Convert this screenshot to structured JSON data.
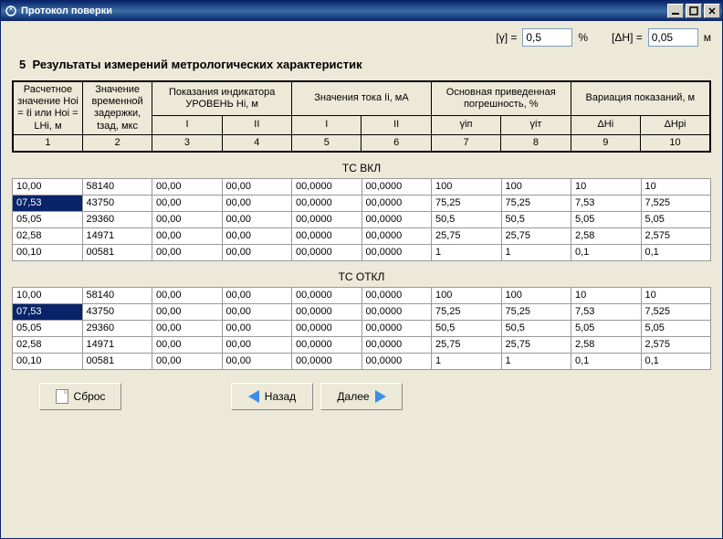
{
  "window": {
    "title": "Протокол поверки"
  },
  "params": {
    "gamma_label": "[γ] =",
    "gamma_value": "0,5",
    "gamma_unit": "%",
    "dh_label": "[ΔH] =",
    "dh_value": "0,05",
    "dh_unit": "м"
  },
  "section": {
    "number": "5",
    "title": "Результаты измерений метрологических характеристик"
  },
  "header_table": {
    "cols_pct": [
      11,
      11,
      11,
      11,
      11,
      11,
      11,
      11,
      11,
      11
    ],
    "row1": {
      "c1": "Расчетное значение\nHoi = ℓi\nили\nHoi = LHi,\nм",
      "c2": "Значение временной задержки, tзад, мкс",
      "c3": "Показания индикатора УРОВЕНЬ\nHi, м",
      "c5": "Значения тока\nIi, мА",
      "c7": "Основная приведенная погрешность, %",
      "c9": "Вариация показаний, м"
    },
    "row2": {
      "c3": "I",
      "c4": "II",
      "c5": "I",
      "c6": "II",
      "c7": "γiп",
      "c8": "γiт",
      "c9": "ΔHi",
      "c10": "ΔHpi"
    },
    "row3": {
      "c1": "1",
      "c2": "2",
      "c3": "3",
      "c4": "4",
      "c5": "5",
      "c6": "6",
      "c7": "7",
      "c8": "8",
      "c9": "9",
      "c10": "10"
    }
  },
  "table1": {
    "label": "ТС ВКЛ",
    "selected": {
      "row": 1,
      "col": 0
    },
    "rows": [
      [
        "10,00",
        "58140",
        "00,00",
        "00,00",
        "00,0000",
        "00,0000",
        "100",
        "100",
        "10",
        "10"
      ],
      [
        "07,53",
        "43750",
        "00,00",
        "00,00",
        "00,0000",
        "00,0000",
        "75,25",
        "75,25",
        "7,53",
        "7,525"
      ],
      [
        "05,05",
        "29360",
        "00,00",
        "00,00",
        "00,0000",
        "00,0000",
        "50,5",
        "50,5",
        "5,05",
        "5,05"
      ],
      [
        "02,58",
        "14971",
        "00,00",
        "00,00",
        "00,0000",
        "00,0000",
        "25,75",
        "25,75",
        "2,58",
        "2,575"
      ],
      [
        "00,10",
        "00581",
        "00,00",
        "00,00",
        "00,0000",
        "00,0000",
        "1",
        "1",
        "0,1",
        "0,1"
      ]
    ]
  },
  "table2": {
    "label": "ТС ОТКЛ",
    "selected": {
      "row": 1,
      "col": 0
    },
    "rows": [
      [
        "10,00",
        "58140",
        "00,00",
        "00,00",
        "00,0000",
        "00,0000",
        "100",
        "100",
        "10",
        "10"
      ],
      [
        "07,53",
        "43750",
        "00,00",
        "00,00",
        "00,0000",
        "00,0000",
        "75,25",
        "75,25",
        "7,53",
        "7,525"
      ],
      [
        "05,05",
        "29360",
        "00,00",
        "00,00",
        "00,0000",
        "00,0000",
        "50,5",
        "50,5",
        "5,05",
        "5,05"
      ],
      [
        "02,58",
        "14971",
        "00,00",
        "00,00",
        "00,0000",
        "00,0000",
        "25,75",
        "25,75",
        "2,58",
        "2,575"
      ],
      [
        "00,10",
        "00581",
        "00,00",
        "00,00",
        "00,0000",
        "00,0000",
        "1",
        "1",
        "0,1",
        "0,1"
      ]
    ]
  },
  "buttons": {
    "reset": "Сброс",
    "back": "Назад",
    "next": "Далее"
  }
}
